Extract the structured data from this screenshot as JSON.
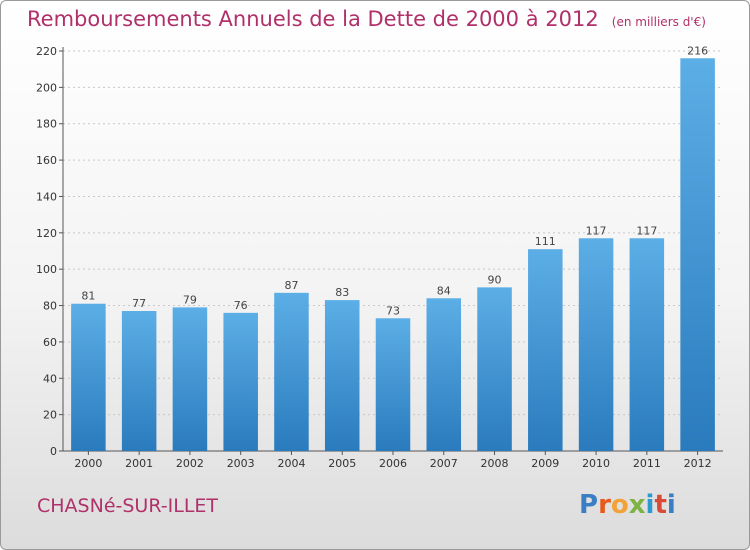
{
  "header": {
    "title": "Remboursements Annuels de la Dette de 2000 à 2012",
    "unit": "(en milliers d'€)"
  },
  "footer": {
    "commune": "CHASNé-SUR-ILLET",
    "logo": [
      "P",
      "r",
      "o",
      "x",
      "i",
      "t",
      "i"
    ]
  },
  "colors": {
    "accent": "#b0306a",
    "bar_top": "#5caee6",
    "bar_bottom": "#2a7bbd"
  },
  "chart_data": {
    "type": "bar",
    "title": "Remboursements Annuels de la Dette de 2000 à 2012",
    "subtitle": "(en milliers d'€)",
    "categories": [
      "2000",
      "2001",
      "2002",
      "2003",
      "2004",
      "2005",
      "2006",
      "2007",
      "2008",
      "2009",
      "2010",
      "2011",
      "2012"
    ],
    "values": [
      81,
      77,
      79,
      76,
      87,
      83,
      73,
      84,
      90,
      111,
      117,
      117,
      216
    ],
    "ylim": [
      0,
      220
    ],
    "yticks": [
      0,
      20,
      40,
      60,
      80,
      100,
      120,
      140,
      160,
      180,
      200,
      220
    ],
    "grid": true,
    "data_labels": true
  }
}
